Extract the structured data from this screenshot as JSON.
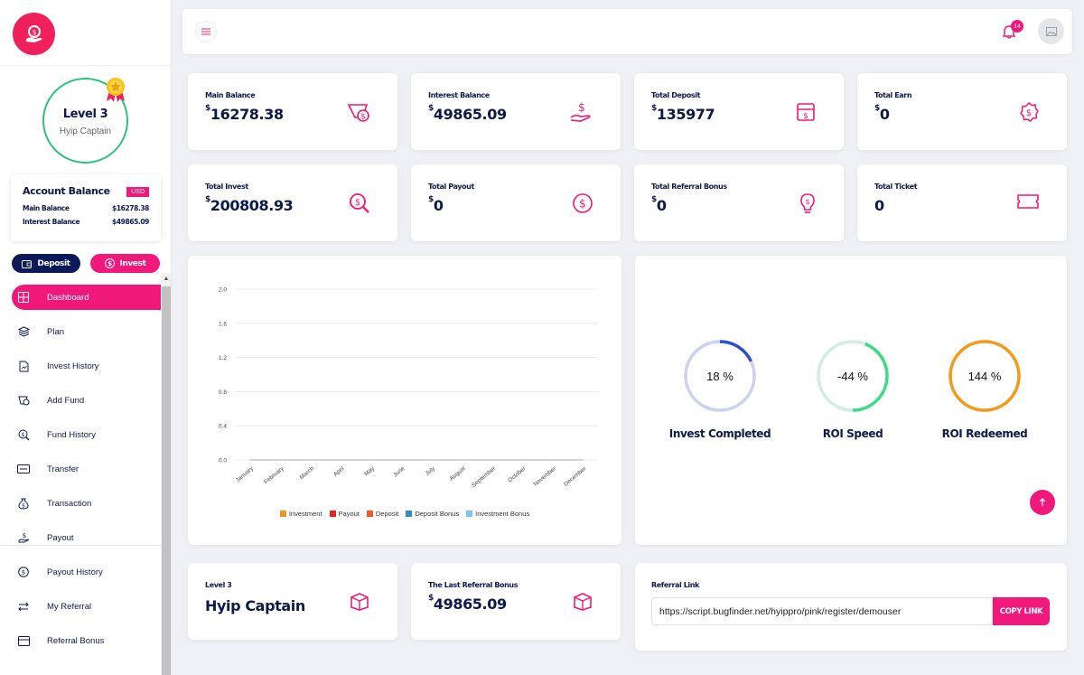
{
  "sidebar": {
    "level": "Level 3",
    "rank": "Hyip Captain",
    "account": {
      "title": "Account Balance",
      "currency": "USD",
      "main_label": "Main Balance",
      "main_value": "$16278.38",
      "interest_label": "Interest Balance",
      "interest_value": "$49865.09"
    },
    "deposit_label": "Deposit",
    "invest_label": "Invest",
    "nav": [
      {
        "label": "Dashboard",
        "icon": "dashboard-icon"
      },
      {
        "label": "Plan",
        "icon": "layers-icon"
      },
      {
        "label": "Invest History",
        "icon": "document-icon"
      },
      {
        "label": "Add Fund",
        "icon": "wallet-icon"
      },
      {
        "label": "Fund History",
        "icon": "search-dollar-icon"
      },
      {
        "label": "Transfer",
        "icon": "transfer-icon"
      },
      {
        "label": "Transaction",
        "icon": "money-bag-icon"
      },
      {
        "label": "Payout",
        "icon": "payout-icon"
      },
      {
        "label": "Payout History",
        "icon": "coin-icon"
      },
      {
        "label": "My Referral",
        "icon": "referral-icon"
      },
      {
        "label": "Referral Bonus",
        "icon": "bonus-icon"
      }
    ]
  },
  "topbar": {
    "notification_count": "14"
  },
  "stats": [
    {
      "label": "Main Balance",
      "currency": "$",
      "value": "16278.38",
      "icon": "wallet-icon"
    },
    {
      "label": "Interest Balance",
      "currency": "$",
      "value": "49865.09",
      "icon": "hand-dollar-icon"
    },
    {
      "label": "Total Deposit",
      "currency": "$",
      "value": "135977",
      "icon": "box-dollar-icon"
    },
    {
      "label": "Total Earn",
      "currency": "$",
      "value": "0",
      "icon": "badge-dollar-icon"
    },
    {
      "label": "Total Invest",
      "currency": "$",
      "value": "200808.93",
      "icon": "search-dollar-icon"
    },
    {
      "label": "Total Payout",
      "currency": "$",
      "value": "0",
      "icon": "coin-icon"
    },
    {
      "label": "Total Referral Bonus",
      "currency": "$",
      "value": "0",
      "icon": "bulb-dollar-icon"
    },
    {
      "label": "Total Ticket",
      "currency": "",
      "value": "0",
      "icon": "ticket-icon"
    }
  ],
  "chart_data": {
    "type": "line",
    "categories": [
      "January",
      "February",
      "March",
      "April",
      "May",
      "June",
      "July",
      "August",
      "September",
      "October",
      "November",
      "December"
    ],
    "y_ticks": [
      "0.0",
      "0.4",
      "0.8",
      "1.2",
      "1.6",
      "2.0"
    ],
    "ylim": [
      0,
      2.0
    ],
    "grid": true,
    "legend_position": "bottom",
    "series": [
      {
        "name": "Investment",
        "color": "#f7941d",
        "values": [
          0,
          0,
          0,
          0,
          0,
          0,
          0,
          0,
          0,
          0,
          0,
          0
        ]
      },
      {
        "name": "Payout",
        "color": "#e8231b",
        "values": [
          0,
          0,
          0,
          0,
          0,
          0,
          0,
          0,
          0,
          0,
          0,
          0
        ]
      },
      {
        "name": "Deposit",
        "color": "#f05a28",
        "values": [
          0,
          0,
          0,
          0,
          0,
          0,
          0,
          0,
          0,
          0,
          0,
          0
        ]
      },
      {
        "name": "Deposit Bonus",
        "color": "#2e8bd0",
        "values": [
          0,
          0,
          0,
          0,
          0,
          0,
          0,
          0,
          0,
          0,
          0,
          0
        ]
      },
      {
        "name": "Investment Bonus",
        "color": "#7cc4f5",
        "values": [
          0,
          0,
          0,
          0,
          0,
          0,
          0,
          0,
          0,
          0,
          0,
          0
        ]
      }
    ]
  },
  "progress": [
    {
      "label": "Invest Completed",
      "value_text": "18 %",
      "fraction": 0.18,
      "color": "#2a4fcf",
      "track": "#c7d3f0"
    },
    {
      "label": "ROI Speed",
      "value_text": "-44 %",
      "fraction": 0.44,
      "color": "#3ddc84",
      "track": "#cfeedd"
    },
    {
      "label": "ROI Redeemed",
      "value_text": "144 %",
      "fraction": 1.0,
      "color": "#f29a1f",
      "track": "#f7dfb8"
    }
  ],
  "bottom": {
    "level_label": "Level 3",
    "level_rank": "Hyip Captain",
    "last_ref_label": "The Last Referral Bonus",
    "last_ref_currency": "$",
    "last_ref_value": "49865.09",
    "ref_link_label": "Referral Link",
    "ref_link_value": "https://script.bugfinder.net/hyippro/pink/register/demouser",
    "copy_label": "COPY LINK"
  }
}
